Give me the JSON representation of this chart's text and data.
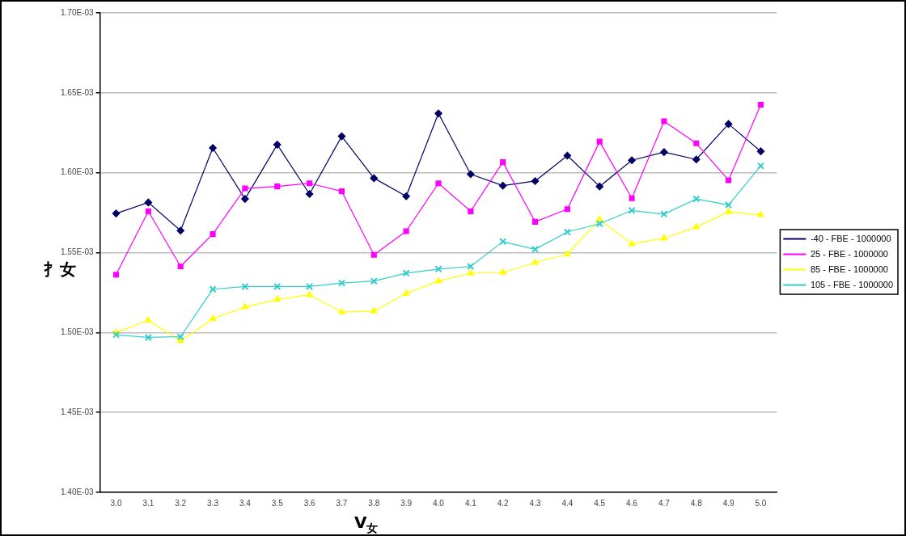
{
  "chart_data": {
    "type": "line",
    "xlabel": "V$_{女}$",
    "ylabel": "扌女",
    "categories": [
      "3.0",
      "3.1",
      "3.2",
      "3.3",
      "3.4",
      "3.5",
      "3.6",
      "3.7",
      "3.8",
      "3.9",
      "4.0",
      "4.1",
      "4.2",
      "4.3",
      "4.4",
      "4.5",
      "4.6",
      "4.7",
      "4.8",
      "4.9",
      "5.0"
    ],
    "ylim": [
      0.0014,
      0.0017
    ],
    "yticks": [
      {
        "value": 0.0014,
        "label": "1.40E-03"
      },
      {
        "value": 0.00145,
        "label": "1.45E-03"
      },
      {
        "value": 0.0015,
        "label": "1.50E-03"
      },
      {
        "value": 0.00155,
        "label": "1.55E-03"
      },
      {
        "value": 0.0016,
        "label": "1.60E-03"
      },
      {
        "value": 0.00165,
        "label": "1.65E-03"
      },
      {
        "value": 0.0017,
        "label": "1.70E-03"
      }
    ],
    "grid": "y",
    "legend": "right",
    "line_style": "solid",
    "series": [
      {
        "name": "-40 - FBE - 1000000",
        "color": "#000066",
        "marker": "diamond",
        "values": [
          0.0015745,
          0.0015814,
          0.0015638,
          0.0016155,
          0.0015836,
          0.0016176,
          0.0015867,
          0.0016228,
          0.0015966,
          0.0015853,
          0.0016371,
          0.0015991,
          0.0015919,
          0.0015948,
          0.0016107,
          0.0015914,
          0.0016078,
          0.0016129,
          0.0016083,
          0.0016305,
          0.0016134
        ]
      },
      {
        "name": "25 - FBE - 1000000",
        "color": "#ff00ff",
        "marker": "square",
        "values": [
          0.0015362,
          0.0015759,
          0.0015414,
          0.0015616,
          0.0015902,
          0.0015914,
          0.0015934,
          0.0015884,
          0.0015486,
          0.0015634,
          0.0015934,
          0.0015759,
          0.0016066,
          0.0015693,
          0.0015772,
          0.0016195,
          0.001584,
          0.0016322,
          0.0016184,
          0.0015953,
          0.0016426
        ]
      },
      {
        "name": "85 - FBE - 1000000",
        "color": "#ffff00",
        "marker": "triangle",
        "values": [
          0.0015,
          0.0015076,
          0.0014948,
          0.0015086,
          0.001516,
          0.0015207,
          0.0015236,
          0.0015128,
          0.0015134,
          0.0015245,
          0.0015322,
          0.0015371,
          0.0015376,
          0.0015438,
          0.0015491,
          0.0015707,
          0.0015555,
          0.001559,
          0.001566,
          0.0015755,
          0.0015736
        ]
      },
      {
        "name": "105 - FBE - 1000000",
        "color": "#33cccc",
        "marker": "cross",
        "values": [
          0.0014986,
          0.0014969,
          0.0014974,
          0.0015271,
          0.0015288,
          0.0015288,
          0.0015288,
          0.001531,
          0.0015322,
          0.0015372,
          0.0015397,
          0.0015414,
          0.0015569,
          0.0015521,
          0.0015629,
          0.0015681,
          0.0015764,
          0.0015741,
          0.0015836,
          0.0015798,
          0.0016043
        ]
      }
    ]
  }
}
